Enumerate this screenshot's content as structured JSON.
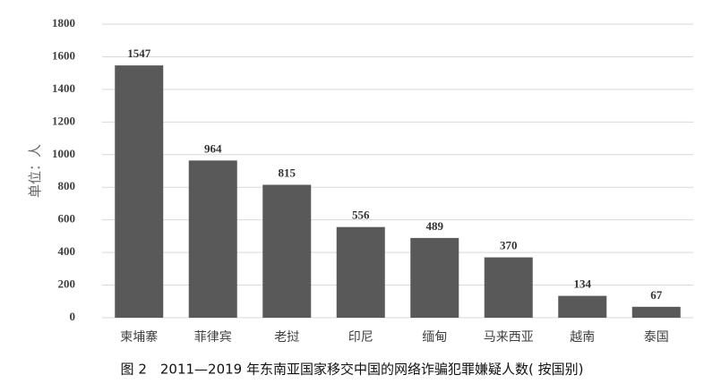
{
  "chart_data": {
    "type": "bar",
    "title": "图 2　2011—2019 年东南亚国家移交中国的网络诈骗犯罪嫌疑人数( 按国别)",
    "y_label": "单位：人",
    "categories": [
      "柬埔寨",
      "菲律宾",
      "老挝",
      "印尼",
      "缅甸",
      "马来西亚",
      "越南",
      "泰国"
    ],
    "values": [
      1547,
      964,
      815,
      556,
      489,
      370,
      134,
      67
    ],
    "color": "#595959",
    "ylim": [
      0,
      1800
    ],
    "yticks": [
      0,
      200,
      400,
      600,
      800,
      1000,
      1200,
      1400,
      1600,
      1800
    ],
    "grid": true
  }
}
